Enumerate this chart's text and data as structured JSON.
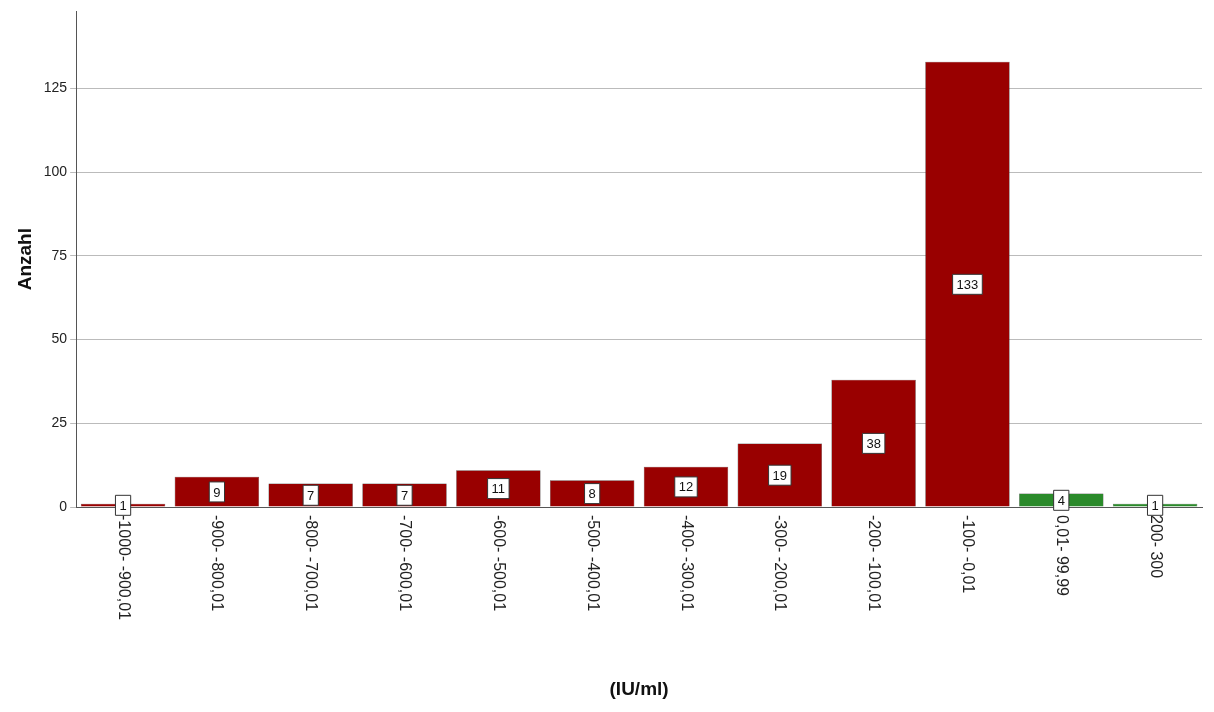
{
  "chart_data": {
    "type": "bar",
    "xlabel": "(IU/ml)",
    "ylabel": "Anzahl",
    "categories": [
      "-1000- -900,01",
      "-900- -800,01",
      "-800- -700,01",
      "-700- -600,01",
      "-600- -500,01",
      "-500- -400,01",
      "-400- -300,01",
      "-300- -200,01",
      "-200- -100,01",
      "-100- -0,01",
      "0,01- 99,99",
      "200- 300"
    ],
    "values": [
      1,
      9,
      7,
      7,
      11,
      8,
      12,
      19,
      38,
      133,
      4,
      1
    ],
    "colors": [
      "#990000",
      "#990000",
      "#990000",
      "#990000",
      "#990000",
      "#990000",
      "#990000",
      "#990000",
      "#990000",
      "#990000",
      "#2a8a2a",
      "#2a8a2a"
    ],
    "ylim": [
      0,
      148
    ],
    "yticks": [
      0,
      25,
      50,
      75,
      100,
      125
    ],
    "grid": "y",
    "data_labels": true
  }
}
